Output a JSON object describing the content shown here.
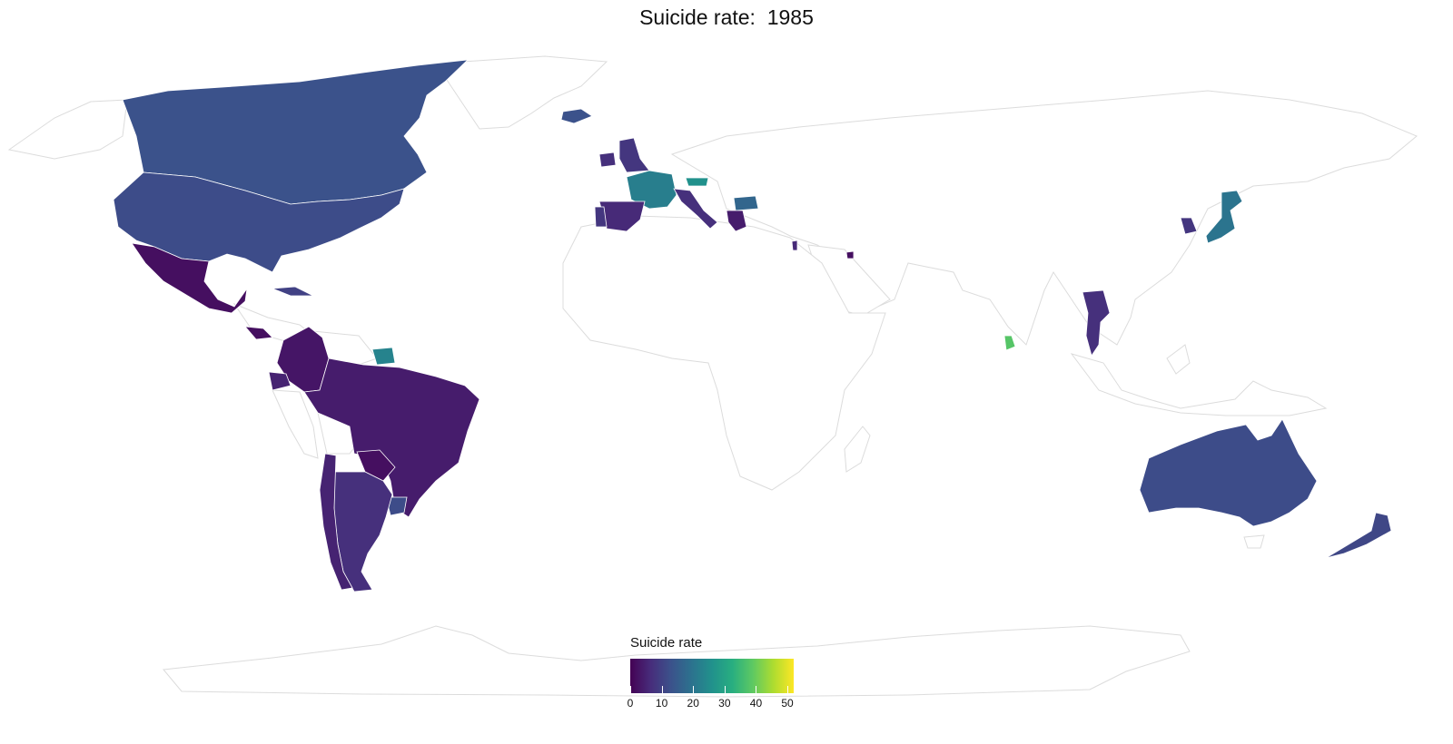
{
  "map": {
    "title": "Suicide rate:  1985",
    "year": 1985,
    "colors": {
      "no_data": "#ffffff",
      "border": "#dcdcdc",
      "scale": [
        "#440154",
        "#472d7b",
        "#3b528b",
        "#2c728e",
        "#21918c",
        "#28ae80",
        "#5ec962",
        "#addc30",
        "#fde725"
      ]
    },
    "legend": {
      "title": "Suicide rate",
      "min": 0,
      "max": 52,
      "ticks": [
        "0",
        "10",
        "20",
        "30",
        "40",
        "50"
      ]
    },
    "regions": [
      {
        "name": "United States",
        "rate": 12
      },
      {
        "name": "Canada",
        "rate": 13
      },
      {
        "name": "Mexico",
        "rate": 2
      },
      {
        "name": "Brazil",
        "rate": 4
      },
      {
        "name": "Colombia",
        "rate": 3
      },
      {
        "name": "Ecuador",
        "rate": 5
      },
      {
        "name": "Argentina",
        "rate": 7
      },
      {
        "name": "Chile",
        "rate": 5
      },
      {
        "name": "Paraguay",
        "rate": 2
      },
      {
        "name": "Uruguay",
        "rate": 12
      },
      {
        "name": "Suriname",
        "rate": 23
      },
      {
        "name": "Guatemala",
        "rate": 2
      },
      {
        "name": "Cuba",
        "rate": 10
      },
      {
        "name": "United Kingdom",
        "rate": 8
      },
      {
        "name": "Ireland",
        "rate": 7
      },
      {
        "name": "Iceland",
        "rate": 13
      },
      {
        "name": "France",
        "rate": 22
      },
      {
        "name": "Spain",
        "rate": 6
      },
      {
        "name": "Portugal",
        "rate": 8
      },
      {
        "name": "Italy",
        "rate": 7
      },
      {
        "name": "Austria",
        "rate": 26
      },
      {
        "name": "Greece",
        "rate": 4
      },
      {
        "name": "Bulgaria",
        "rate": 17
      },
      {
        "name": "Israel",
        "rate": 6
      },
      {
        "name": "Kuwait",
        "rate": 2
      },
      {
        "name": "Japan",
        "rate": 20
      },
      {
        "name": "South Korea",
        "rate": 8
      },
      {
        "name": "Thailand",
        "rate": 7
      },
      {
        "name": "Sri Lanka",
        "rate": 38
      },
      {
        "name": "Australia",
        "rate": 12
      },
      {
        "name": "New Zealand",
        "rate": 11
      }
    ]
  }
}
